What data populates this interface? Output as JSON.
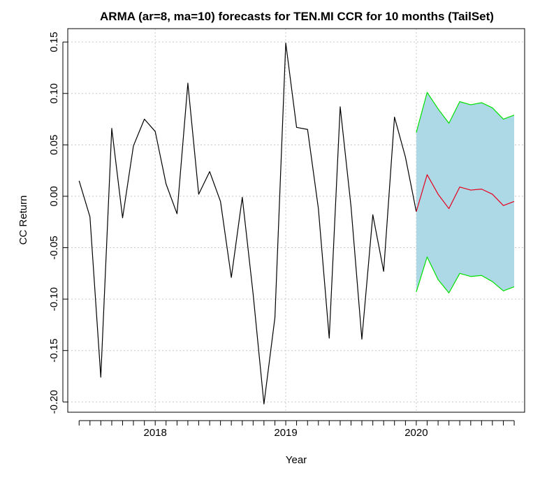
{
  "chart_data": {
    "type": "line",
    "title": "ARMA (ar=8, ma=10) forecasts for TEN.MI CCR for 10 months (TailSet)",
    "xlabel": "Year",
    "ylabel": "CC Return",
    "xlim": [
      2017.33,
      2020.83
    ],
    "ylim": [
      -0.21,
      0.163
    ],
    "x_ticks": [
      2018,
      2019,
      2020
    ],
    "x_tick_labels": [
      "2018",
      "2019",
      "2020"
    ],
    "y_ticks": [
      -0.2,
      -0.15,
      -0.1,
      -0.05,
      0.0,
      0.05,
      0.1,
      0.15
    ],
    "y_tick_labels": [
      "-0.20",
      "-0.15",
      "-0.10",
      "-0.05",
      "0.00",
      "0.05",
      "0.10",
      "0.15"
    ],
    "grid": true,
    "colors": {
      "actual": "#000000",
      "forecast": "#e8001c",
      "bounds": "#00e000",
      "band": "#add8e6",
      "grid": "#c8c8c8"
    },
    "series": [
      {
        "role": "actual",
        "x": [
          2017.417,
          2017.5,
          2017.583,
          2017.667,
          2017.75,
          2017.833,
          2017.917,
          2018.0,
          2018.083,
          2018.167,
          2018.25,
          2018.333,
          2018.417,
          2018.5,
          2018.583,
          2018.667,
          2018.75,
          2018.833,
          2018.917,
          2019.0,
          2019.083,
          2019.167,
          2019.25,
          2019.333,
          2019.417,
          2019.5,
          2019.583,
          2019.667,
          2019.75,
          2019.833,
          2019.917,
          2020.0
        ],
        "values": [
          0.015,
          -0.02,
          -0.176,
          0.066,
          -0.021,
          0.049,
          0.075,
          0.063,
          0.012,
          -0.017,
          0.11,
          0.002,
          0.024,
          -0.005,
          -0.079,
          -0.001,
          -0.095,
          -0.202,
          -0.118,
          0.149,
          0.067,
          0.065,
          -0.012,
          -0.138,
          0.087,
          -0.01,
          -0.139,
          -0.018,
          -0.073,
          0.077,
          0.038,
          -0.015
        ]
      },
      {
        "role": "forecast",
        "x": [
          2020.0,
          2020.083,
          2020.167,
          2020.25,
          2020.333,
          2020.417,
          2020.5,
          2020.583,
          2020.667,
          2020.75
        ],
        "values": [
          -0.015,
          0.021,
          0.002,
          -0.012,
          0.009,
          0.006,
          0.007,
          0.002,
          -0.009,
          -0.005
        ]
      },
      {
        "role": "upper",
        "x": [
          2020.0,
          2020.083,
          2020.167,
          2020.25,
          2020.333,
          2020.417,
          2020.5,
          2020.583,
          2020.667,
          2020.75
        ],
        "values": [
          0.062,
          0.101,
          0.085,
          0.071,
          0.092,
          0.089,
          0.091,
          0.086,
          0.075,
          0.079
        ]
      },
      {
        "role": "lower",
        "x": [
          2020.0,
          2020.083,
          2020.167,
          2020.25,
          2020.333,
          2020.417,
          2020.5,
          2020.583,
          2020.667,
          2020.75
        ],
        "values": [
          -0.093,
          -0.059,
          -0.081,
          -0.094,
          -0.075,
          -0.078,
          -0.077,
          -0.083,
          -0.092,
          -0.088
        ]
      }
    ]
  }
}
